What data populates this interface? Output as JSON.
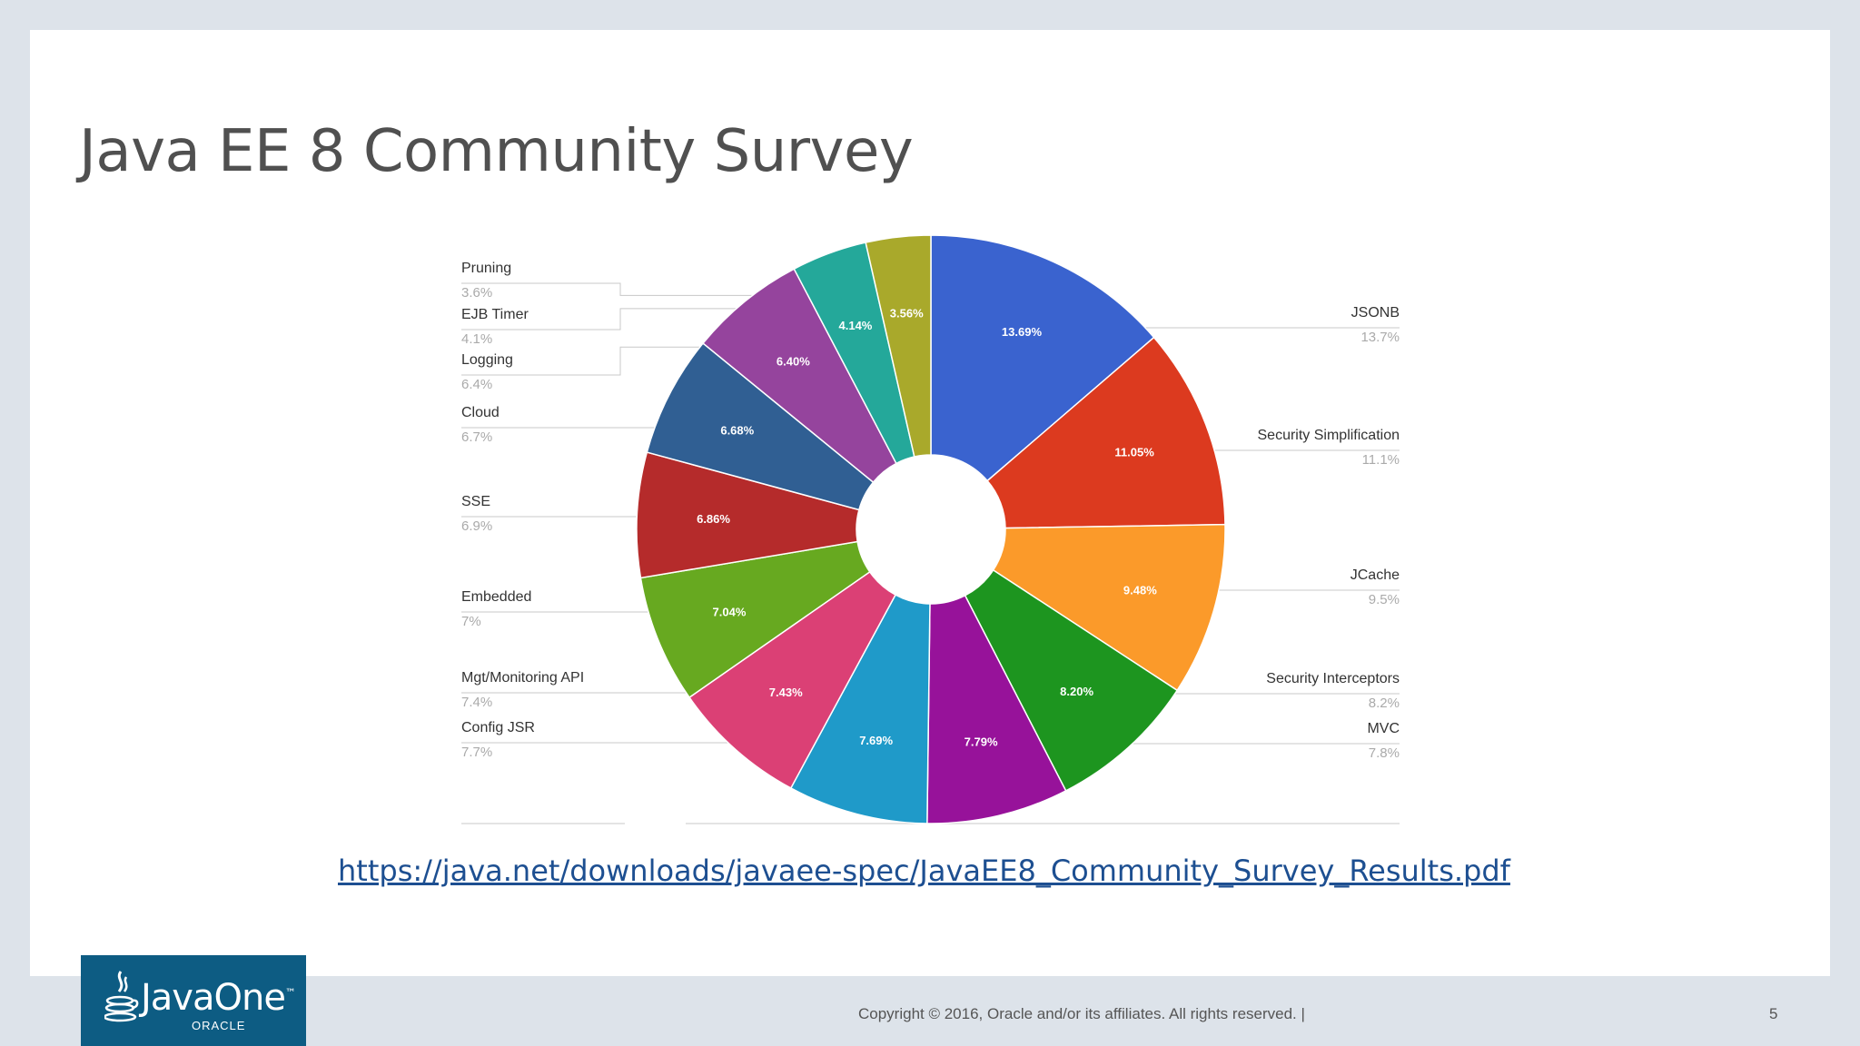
{
  "slide": {
    "title": "Java EE 8 Community Survey",
    "link": "https://java.net/downloads/javaee-spec/JavaEE8_Community_Survey_Results.pdf",
    "copyright": "Copyright © 2016, Oracle and/or its affiliates. All rights reserved.  |",
    "page_number": "5"
  },
  "logo": {
    "name": "JavaOne",
    "tm": "™",
    "corp": "ORACLE"
  },
  "chart_data": {
    "type": "pie",
    "donut": true,
    "slices": [
      {
        "label": "JSONB",
        "value": 13.69,
        "slice_label": "13.69%",
        "legend_value": "13.7%",
        "color": "#3a63cf",
        "side": "right"
      },
      {
        "label": "Security Simplification",
        "value": 11.05,
        "slice_label": "11.05%",
        "legend_value": "11.1%",
        "color": "#dc3a1f",
        "side": "right"
      },
      {
        "label": "JCache",
        "value": 9.48,
        "slice_label": "9.48%",
        "legend_value": "9.5%",
        "color": "#fb9a2a",
        "side": "right"
      },
      {
        "label": "Security Interceptors",
        "value": 8.2,
        "slice_label": "8.20%",
        "legend_value": "8.2%",
        "color": "#1d951f",
        "side": "right"
      },
      {
        "label": "MVC",
        "value": 7.79,
        "slice_label": "7.79%",
        "legend_value": "7.8%",
        "color": "#97129a",
        "side": "right"
      },
      {
        "label": "Config JSR",
        "value": 7.69,
        "slice_label": "7.69%",
        "legend_value": "7.7%",
        "color": "#1f9ac9",
        "side": "left"
      },
      {
        "label": "Mgt/Monitoring API",
        "value": 7.43,
        "slice_label": "7.43%",
        "legend_value": "7.4%",
        "color": "#db4075",
        "side": "left"
      },
      {
        "label": "Embedded",
        "value": 7.04,
        "slice_label": "7.04%",
        "legend_value": "7%",
        "color": "#67a920",
        "side": "left"
      },
      {
        "label": "SSE",
        "value": 6.86,
        "slice_label": "6.86%",
        "legend_value": "6.9%",
        "color": "#b52b2b",
        "side": "left"
      },
      {
        "label": "Cloud",
        "value": 6.68,
        "slice_label": "6.68%",
        "legend_value": "6.7%",
        "color": "#305f93",
        "side": "left"
      },
      {
        "label": "Logging",
        "value": 6.4,
        "slice_label": "6.40%",
        "legend_value": "6.4%",
        "color": "#95449d",
        "side": "left"
      },
      {
        "label": "EJB Timer",
        "value": 4.14,
        "slice_label": "4.14%",
        "legend_value": "4.1%",
        "color": "#24a89a",
        "side": "left"
      },
      {
        "label": "Pruning",
        "value": 3.56,
        "slice_label": "3.56%",
        "legend_value": "3.6%",
        "color": "#a9a92b",
        "side": "left"
      }
    ]
  }
}
